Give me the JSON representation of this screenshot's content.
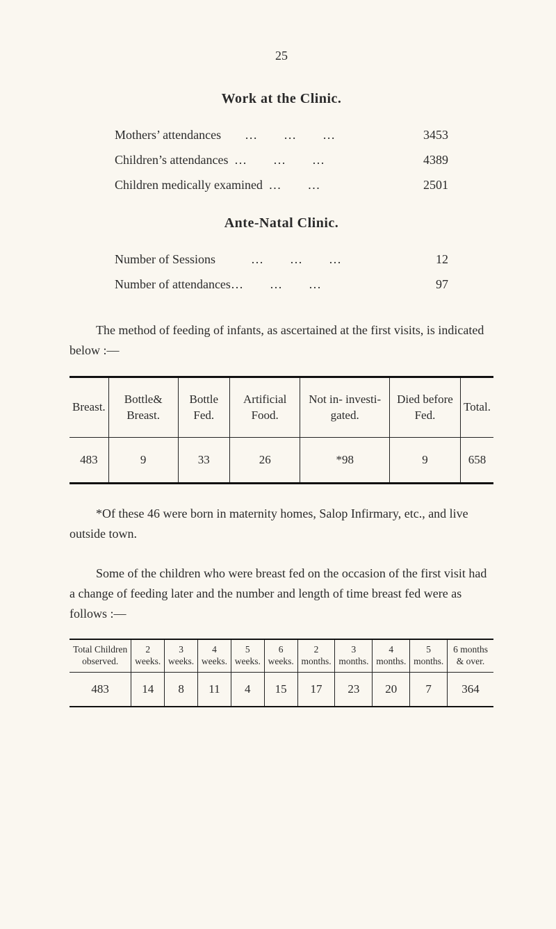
{
  "page_number": "25",
  "section1": {
    "title": "Work at the Clinic.",
    "lines": [
      {
        "label": "Mothers’ attendances",
        "dots": "…    …    …",
        "value": "3453"
      },
      {
        "label": "Children’s attendances",
        "dots": "…    …    …",
        "value": "4389"
      },
      {
        "label": "Children medically examined",
        "dots": "…    …",
        "value": "2501"
      }
    ]
  },
  "section2": {
    "title": "Ante-Natal Clinic.",
    "lines": [
      {
        "label": "Number of Sessions",
        "dots": "…    …    …",
        "value": "12"
      },
      {
        "label": "Number of attendances",
        "dots": "…    …    …",
        "value": "97"
      }
    ]
  },
  "para_intro": "The method of feeding of infants, as ascertained at the first visits, is indicated below :—",
  "table1": {
    "headers": [
      "Breast.",
      "Bottle& Breast.",
      "Bottle Fed.",
      "Artificial Food.",
      "Not in- investi- gated.",
      "Died before Fed.",
      "Total."
    ],
    "row": [
      "483",
      "9",
      "33",
      "26",
      "*98",
      "9",
      "658"
    ]
  },
  "footnote": "*Of these 46 were born in maternity homes, Salop Infirmary, etc., and live outside town.",
  "para_second": "Some of the children who were breast fed on the occasion of the first visit had a change of feeding later and the number and length of time breast fed were as follows :—",
  "table2": {
    "headers": [
      "Total Children observed.",
      "2 weeks.",
      "3 weeks.",
      "4 weeks.",
      "5 weeks.",
      "6 weeks.",
      "2 months.",
      "3 months.",
      "4 months.",
      "5 months.",
      "6 months & over."
    ],
    "row": [
      "483",
      "14",
      "8",
      "11",
      "4",
      "15",
      "17",
      "23",
      "20",
      "7",
      "364"
    ]
  },
  "colors": {
    "page_bg": "#faf7f0",
    "text": "#2a2a2a",
    "rule": "#111111"
  }
}
